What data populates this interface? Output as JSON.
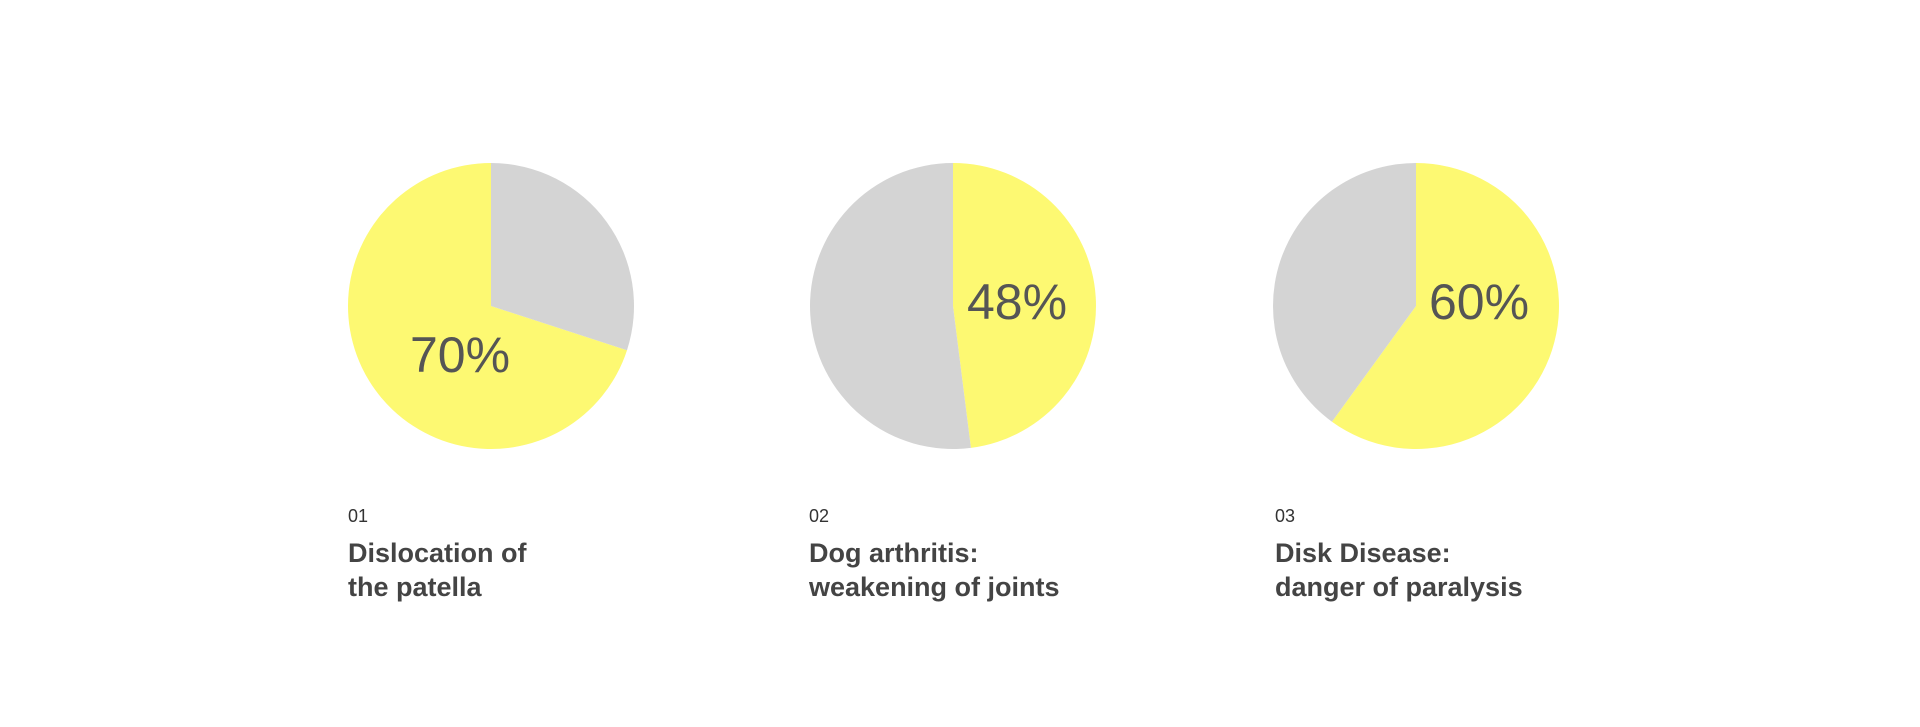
{
  "chart_data": [
    {
      "type": "pie",
      "number": "01",
      "title": [
        "Dislocation of",
        "the patella"
      ],
      "values": [
        70,
        30
      ],
      "value_label": "70%",
      "colors": [
        "#fdf972",
        "#d4d4d4"
      ]
    },
    {
      "type": "pie",
      "number": "02",
      "title": [
        "Dog arthritis:",
        "weakening of joints"
      ],
      "values": [
        48,
        52
      ],
      "value_label": "48%",
      "colors": [
        "#fdf972",
        "#d4d4d4"
      ]
    },
    {
      "type": "pie",
      "number": "03",
      "title": [
        "Disk Disease:",
        "danger of paralysis"
      ],
      "values": [
        60,
        40
      ],
      "value_label": "60%",
      "colors": [
        "#fdf972",
        "#d4d4d4"
      ]
    }
  ]
}
